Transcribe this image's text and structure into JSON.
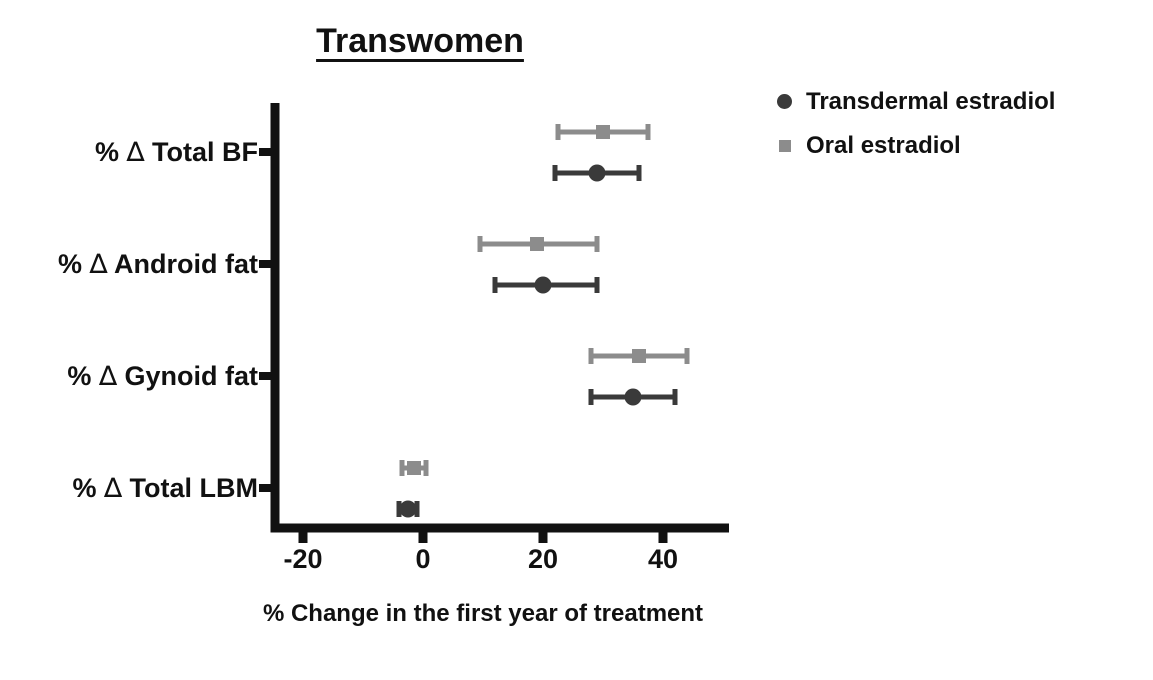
{
  "chart_data": {
    "type": "scatter",
    "subtype": "dot-with-error-bars",
    "title": "Transwomen",
    "xlabel": "% Change in the first year of treatment",
    "ylabel": "",
    "categories": [
      "% ∆ Total BF",
      "% ∆ Android fat",
      "% ∆ Gynoid fat",
      "% ∆ Total LBM"
    ],
    "xlim": [
      -25.5,
      51
    ],
    "xticks": [
      -20,
      0,
      20,
      40
    ],
    "grid": false,
    "legend_position": "top-right",
    "axis_color": "#111111",
    "series": [
      {
        "name": "Transdermal estradiol",
        "marker": "circle",
        "color": "#3a3a3a",
        "values": [
          29,
          20,
          35,
          -2.5
        ],
        "ci_low": [
          22,
          12,
          28,
          -4
        ],
        "ci_high": [
          36,
          29,
          42,
          -1
        ]
      },
      {
        "name": "Oral estradiol",
        "marker": "square",
        "color": "#8c8c8c",
        "values": [
          30,
          19,
          36,
          -1.5
        ],
        "ci_low": [
          22.5,
          9.5,
          28,
          -3.5
        ],
        "ci_high": [
          37.5,
          29,
          44,
          0.5
        ]
      }
    ]
  }
}
